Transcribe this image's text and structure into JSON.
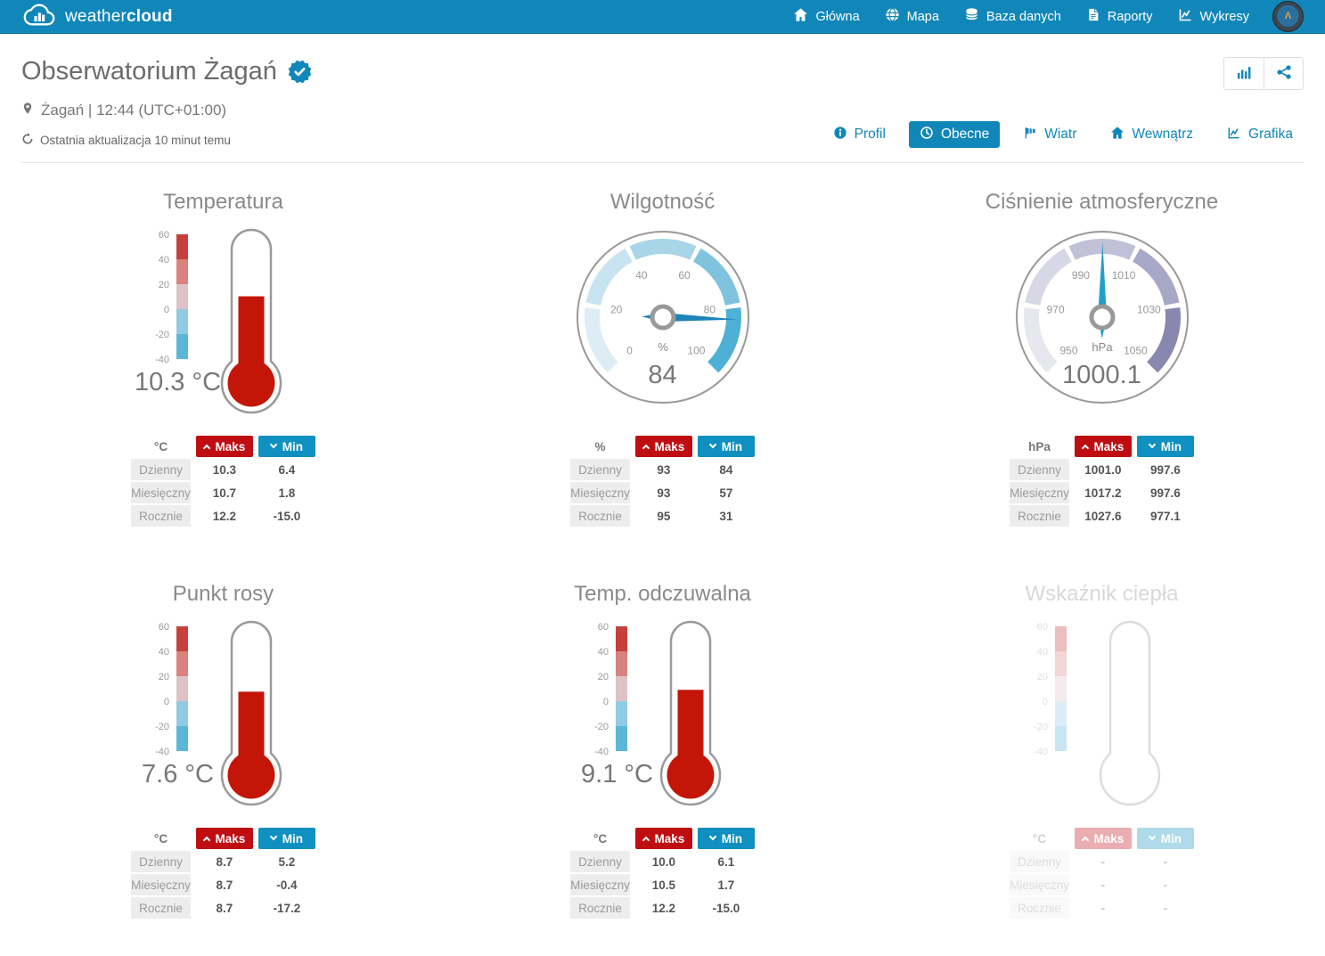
{
  "navbar": {
    "brand_light": "weather",
    "brand_bold": "cloud",
    "items": [
      {
        "label": "Główna",
        "icon": "home-icon"
      },
      {
        "label": "Mapa",
        "icon": "globe-icon"
      },
      {
        "label": "Baza danych",
        "icon": "database-icon"
      },
      {
        "label": "Raporty",
        "icon": "report-icon"
      },
      {
        "label": "Wykresy",
        "icon": "line-chart-icon"
      }
    ]
  },
  "header": {
    "station_name": "Obserwatorium Żagań",
    "location_line": "Żagań | 12:44 (UTC+01:00)",
    "last_update": "Ostatnia aktualizacja 10 minut temu"
  },
  "toolbar": {
    "buttons": [
      {
        "icon": "bar-chart-icon"
      },
      {
        "icon": "share-icon"
      }
    ]
  },
  "tabs": [
    {
      "label": "Profil",
      "icon": "info-icon",
      "active": false
    },
    {
      "label": "Obecne",
      "icon": "clock-icon",
      "active": true
    },
    {
      "label": "Wiatr",
      "icon": "windsock-icon",
      "active": false
    },
    {
      "label": "Wewnątrz",
      "icon": "home-icon",
      "active": false
    },
    {
      "label": "Grafika",
      "icon": "line-chart-icon",
      "active": false
    }
  ],
  "colors": {
    "brand_blue": "#1187b9",
    "maks_red": "#c00d12",
    "min_blue": "#1090c0",
    "therm_fill_red": "#c31608",
    "value_gray": "#777777"
  },
  "panels": [
    {
      "id": "temperature",
      "title": "Temperatura",
      "value_display": "10.3 °C",
      "disabled": false,
      "gauge": {
        "type": "thermometer",
        "min": -40,
        "max": 60,
        "value": 10.3,
        "ticks": [
          60,
          40,
          20,
          0,
          -20,
          -40
        ],
        "segment_colors": [
          "#c5403c",
          "#d8827e",
          "#ddc3c6",
          "#90cbe3",
          "#5cb6d8"
        ],
        "fill_color": "#c31608"
      },
      "table": {
        "unit_label": "°C",
        "maks_label": "Maks",
        "min_label": "Min",
        "rows": [
          {
            "label": "Dzienny",
            "maks": "10.3",
            "min": "6.4"
          },
          {
            "label": "Miesięczny",
            "maks": "10.7",
            "min": "1.8"
          },
          {
            "label": "Rocznie",
            "maks": "12.2",
            "min": "-15.0"
          }
        ]
      }
    },
    {
      "id": "humidity",
      "title": "Wilgotność",
      "value_display": "84",
      "disabled": false,
      "gauge": {
        "type": "dial",
        "min": 0,
        "max": 100,
        "value": 84,
        "unit": "%",
        "ticks": [
          0,
          20,
          40,
          60,
          80,
          100
        ],
        "segment_colors": [
          "#ddedf6",
          "#c9e4f1",
          "#a9d5e8",
          "#7fc3de",
          "#4fb0d6"
        ],
        "needle_color": "#1b84b8"
      },
      "table": {
        "unit_label": "%",
        "maks_label": "Maks",
        "min_label": "Min",
        "rows": [
          {
            "label": "Dzienny",
            "maks": "93",
            "min": "84"
          },
          {
            "label": "Miesięczny",
            "maks": "93",
            "min": "57"
          },
          {
            "label": "Rocznie",
            "maks": "95",
            "min": "31"
          }
        ]
      }
    },
    {
      "id": "pressure",
      "title": "Ciśnienie atmosferyczne",
      "value_display": "1000.1",
      "disabled": false,
      "gauge": {
        "type": "dial",
        "min": 950,
        "max": 1050,
        "value": 1000.1,
        "unit": "hPa",
        "ticks": [
          950,
          970,
          990,
          1010,
          1030,
          1050
        ],
        "segment_colors": [
          "#e7e7ef",
          "#d7d7e5",
          "#c0c0d6",
          "#a7a7c7",
          "#8787af"
        ],
        "needle_color": "#21a0cc"
      },
      "table": {
        "unit_label": "hPa",
        "maks_label": "Maks",
        "min_label": "Min",
        "rows": [
          {
            "label": "Dzienny",
            "maks": "1001.0",
            "min": "997.6"
          },
          {
            "label": "Miesięczny",
            "maks": "1017.2",
            "min": "997.6"
          },
          {
            "label": "Rocznie",
            "maks": "1027.6",
            "min": "977.1"
          }
        ]
      }
    },
    {
      "id": "dew-point",
      "title": "Punkt rosy",
      "value_display": "7.6 °C",
      "disabled": false,
      "gauge": {
        "type": "thermometer",
        "min": -40,
        "max": 60,
        "value": 7.6,
        "ticks": [
          60,
          40,
          20,
          0,
          -20,
          -40
        ],
        "segment_colors": [
          "#c5403c",
          "#d8827e",
          "#ddc3c6",
          "#90cbe3",
          "#5cb6d8"
        ],
        "fill_color": "#c31608"
      },
      "table": {
        "unit_label": "°C",
        "maks_label": "Maks",
        "min_label": "Min",
        "rows": [
          {
            "label": "Dzienny",
            "maks": "8.7",
            "min": "5.2"
          },
          {
            "label": "Miesięczny",
            "maks": "8.7",
            "min": "-0.4"
          },
          {
            "label": "Rocznie",
            "maks": "8.7",
            "min": "-17.2"
          }
        ]
      }
    },
    {
      "id": "feels-like",
      "title": "Temp. odczuwalna",
      "value_display": "9.1 °C",
      "disabled": false,
      "gauge": {
        "type": "thermometer",
        "min": -40,
        "max": 60,
        "value": 9.1,
        "ticks": [
          60,
          40,
          20,
          0,
          -20,
          -40
        ],
        "segment_colors": [
          "#c5403c",
          "#d8827e",
          "#ddc3c6",
          "#90cbe3",
          "#5cb6d8"
        ],
        "fill_color": "#c31608"
      },
      "table": {
        "unit_label": "°C",
        "maks_label": "Maks",
        "min_label": "Min",
        "rows": [
          {
            "label": "Dzienny",
            "maks": "10.0",
            "min": "6.1"
          },
          {
            "label": "Miesięczny",
            "maks": "10.5",
            "min": "1.7"
          },
          {
            "label": "Rocznie",
            "maks": "12.2",
            "min": "-15.0"
          }
        ]
      }
    },
    {
      "id": "heat-index",
      "title": "Wskaźnik ciepła",
      "value_display": "",
      "disabled": true,
      "gauge": {
        "type": "thermometer",
        "min": -40,
        "max": 60,
        "value": null,
        "ticks": [
          60,
          40,
          20,
          0,
          -20,
          -40
        ],
        "segment_colors": [
          "#c5403c",
          "#d8827e",
          "#ddc3c6",
          "#90cbe3",
          "#5cb6d8"
        ],
        "fill_color": "#c31608"
      },
      "table": {
        "unit_label": "°C",
        "maks_label": "Maks",
        "min_label": "Min",
        "rows": [
          {
            "label": "Dzienny",
            "maks": "-",
            "min": "-"
          },
          {
            "label": "Miesięczny",
            "maks": "-",
            "min": "-"
          },
          {
            "label": "Rocznie",
            "maks": "-",
            "min": "-"
          }
        ]
      }
    }
  ]
}
